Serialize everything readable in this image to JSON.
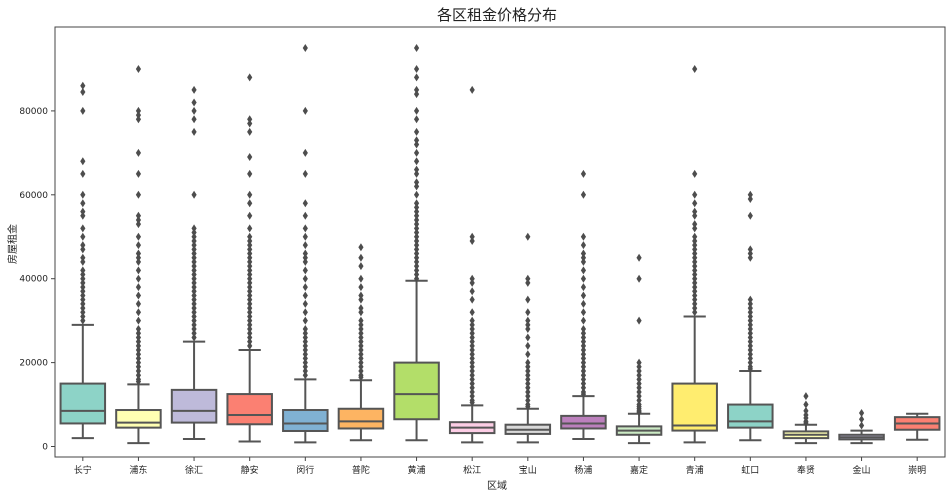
{
  "chart_data": {
    "type": "box",
    "title": "各区租金价格分布",
    "xlabel": "区域",
    "ylabel": "房屋租金",
    "ylim": [
      -2500,
      100000
    ],
    "yticks": [
      0,
      20000,
      40000,
      60000,
      80000
    ],
    "grid": false,
    "categories": [
      "长宁",
      "浦东",
      "徐汇",
      "静安",
      "闵行",
      "普陀",
      "黄浦",
      "松江",
      "宝山",
      "杨浦",
      "嘉定",
      "青浦",
      "虹口",
      "奉贤",
      "金山",
      "崇明"
    ],
    "colors": [
      "#8dd3c7",
      "#ffffb3",
      "#bebada",
      "#fb8072",
      "#80b1d3",
      "#fdb462",
      "#b3de69",
      "#fccde5",
      "#d9d9d9",
      "#bc80bd",
      "#ccebc5",
      "#ffed6f",
      "#8dd3c7",
      "#ffffb3",
      "#bebada",
      "#fb8072"
    ],
    "boxes": [
      {
        "whisker_low": 2000,
        "q1": 5500,
        "median": 8500,
        "q3": 15000,
        "whisker_high": 29000,
        "outliers": [
          86000,
          84500,
          80000,
          68000,
          65000,
          60000,
          58000,
          56000,
          55000,
          52000,
          50000,
          48000,
          47000,
          45000,
          44000,
          42000,
          41000,
          40000,
          39000,
          38000,
          37000,
          36000,
          35000,
          34000,
          33000,
          32000,
          31000,
          30000
        ]
      },
      {
        "whisker_low": 800,
        "q1": 4500,
        "median": 5700,
        "q3": 8700,
        "whisker_high": 14800,
        "outliers": [
          90000,
          80000,
          79000,
          78000,
          70000,
          65000,
          60000,
          55000,
          54000,
          53000,
          50000,
          48000,
          46000,
          45000,
          44000,
          42000,
          40000,
          38000,
          36000,
          34000,
          32000,
          30000,
          28000,
          27000,
          26000,
          25000,
          24000,
          23000,
          22000,
          21000,
          20000,
          19000,
          18000,
          17000,
          16000,
          15500
        ]
      },
      {
        "whisker_low": 1800,
        "q1": 5700,
        "median": 8500,
        "q3": 13500,
        "whisker_high": 25000,
        "outliers": [
          85000,
          82000,
          80000,
          78000,
          75000,
          60000,
          52000,
          51000,
          50000,
          49000,
          48000,
          47000,
          46000,
          45000,
          44000,
          43000,
          42000,
          41000,
          40000,
          39000,
          38000,
          37000,
          36000,
          35000,
          34000,
          33000,
          32000,
          31000,
          30000,
          29000,
          28000,
          27000,
          26000
        ]
      },
      {
        "whisker_low": 1200,
        "q1": 5300,
        "median": 7500,
        "q3": 12500,
        "whisker_high": 23000,
        "outliers": [
          88000,
          78000,
          77000,
          75000,
          69000,
          65000,
          60000,
          58000,
          55000,
          52000,
          50000,
          49000,
          48000,
          47000,
          46000,
          45000,
          44000,
          43000,
          42000,
          41000,
          40000,
          39000,
          38000,
          37000,
          36000,
          35000,
          34000,
          33000,
          32000,
          31000,
          30000,
          29000,
          28000,
          27000,
          26000,
          25000,
          24000
        ]
      },
      {
        "whisker_low": 1000,
        "q1": 3700,
        "median": 5500,
        "q3": 8700,
        "whisker_high": 16000,
        "outliers": [
          95000,
          80000,
          70000,
          65000,
          58000,
          55000,
          52000,
          50000,
          48000,
          46000,
          45000,
          44000,
          42000,
          40000,
          38000,
          36000,
          34000,
          32000,
          30000,
          28000,
          27000,
          26000,
          25000,
          24000,
          23000,
          22000,
          21000,
          20000,
          19000,
          18000,
          17000
        ]
      },
      {
        "whisker_low": 1500,
        "q1": 4300,
        "median": 6000,
        "q3": 9000,
        "whisker_high": 15800,
        "outliers": [
          47500,
          45000,
          43000,
          40000,
          38000,
          36000,
          35000,
          33000,
          32000,
          30000,
          29000,
          28000,
          27000,
          26000,
          25000,
          24000,
          23000,
          22000,
          21000,
          20000,
          19000,
          18000,
          17000,
          16500
        ]
      },
      {
        "whisker_low": 1500,
        "q1": 6500,
        "median": 12500,
        "q3": 20000,
        "whisker_high": 39500,
        "outliers": [
          95000,
          90000,
          88000,
          85000,
          84000,
          80000,
          78000,
          75000,
          73000,
          72000,
          70000,
          68000,
          66000,
          65000,
          63000,
          62000,
          60000,
          58000,
          57000,
          56000,
          55000,
          54000,
          53000,
          52000,
          51000,
          50000,
          49000,
          48000,
          47000,
          46000,
          45000,
          44000,
          43000,
          42000,
          41000,
          40000
        ]
      },
      {
        "whisker_low": 1000,
        "q1": 3200,
        "median": 4500,
        "q3": 5800,
        "whisker_high": 9800,
        "outliers": [
          85000,
          50000,
          49000,
          40000,
          39000,
          37000,
          35000,
          32000,
          30000,
          29000,
          28000,
          27000,
          26000,
          25000,
          24000,
          23000,
          22000,
          21000,
          20000,
          19000,
          18000,
          17000,
          16000,
          15000,
          14000,
          13000,
          12000,
          11000,
          10500
        ]
      },
      {
        "whisker_low": 1000,
        "q1": 3000,
        "median": 4000,
        "q3": 5200,
        "whisker_high": 9000,
        "outliers": [
          50000,
          40000,
          39000,
          35000,
          32000,
          30000,
          29000,
          28000,
          26000,
          24000,
          22000,
          20000,
          19000,
          18000,
          17000,
          16000,
          15000,
          14000,
          13000,
          12000,
          11000,
          10000,
          9500
        ]
      },
      {
        "whisker_low": 1800,
        "q1": 4300,
        "median": 5500,
        "q3": 7300,
        "whisker_high": 12000,
        "outliers": [
          65000,
          60000,
          50000,
          48000,
          46000,
          45000,
          44000,
          42000,
          40000,
          38000,
          36000,
          34000,
          32000,
          30000,
          28000,
          27000,
          26000,
          25000,
          24000,
          23000,
          22000,
          21000,
          20000,
          19000,
          18000,
          17000,
          16000,
          15000,
          14000,
          13000,
          12500
        ]
      },
      {
        "whisker_low": 800,
        "q1": 2800,
        "median": 3800,
        "q3": 4800,
        "whisker_high": 7800,
        "outliers": [
          45000,
          40000,
          30000,
          20000,
          19000,
          18000,
          17000,
          16000,
          15000,
          14000,
          13000,
          12000,
          11000,
          10000,
          9500,
          9000,
          8500,
          8200
        ]
      },
      {
        "whisker_low": 1000,
        "q1": 3800,
        "median": 5000,
        "q3": 15000,
        "whisker_high": 31000,
        "outliers": [
          90000,
          65000,
          60000,
          58000,
          56000,
          55000,
          53000,
          52000,
          50000,
          49000,
          48000,
          47000,
          46000,
          45000,
          44000,
          43000,
          42000,
          41000,
          40000,
          39000,
          38000,
          37000,
          36000,
          35000,
          34000,
          33000,
          32000
        ]
      },
      {
        "whisker_low": 1500,
        "q1": 4500,
        "median": 6000,
        "q3": 10000,
        "whisker_high": 18000,
        "outliers": [
          60000,
          59000,
          55000,
          47000,
          46000,
          45000,
          35000,
          34000,
          33000,
          32000,
          31000,
          30000,
          29000,
          28000,
          27000,
          26000,
          25000,
          24000,
          23000,
          22000,
          21000,
          20000,
          19000,
          18500
        ]
      },
      {
        "whisker_low": 800,
        "q1": 2000,
        "median": 2800,
        "q3": 3600,
        "whisker_high": 5200,
        "outliers": [
          12000,
          10000,
          8500,
          7500,
          6800,
          6000,
          5600
        ]
      },
      {
        "whisker_low": 800,
        "q1": 1700,
        "median": 2200,
        "q3": 2800,
        "whisker_high": 3800,
        "outliers": [
          8000,
          6500,
          5000
        ]
      },
      {
        "whisker_low": 1600,
        "q1": 4000,
        "median": 5500,
        "q3": 7000,
        "whisker_high": 7800,
        "outliers": []
      }
    ]
  }
}
